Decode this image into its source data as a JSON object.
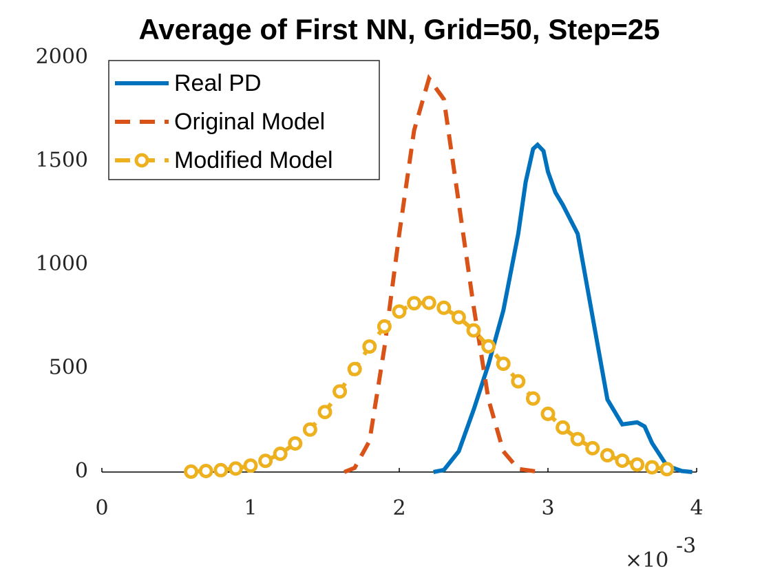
{
  "chart_data": {
    "type": "line",
    "title": "Average of First NN, Grid=50, Step=25",
    "x_offset_label": "×10",
    "x_offset_exponent": "-3",
    "xlim": [
      0,
      4
    ],
    "xticks": [
      0,
      1,
      2,
      3,
      4
    ],
    "ylim": [
      0,
      2000
    ],
    "yticks": [
      0,
      500,
      1000,
      1500,
      2000
    ],
    "legend": "upper left",
    "series": [
      {
        "name": "Real PD",
        "color": "#0072bd",
        "style": "solid",
        "x": [
          2.23,
          2.3,
          2.4,
          2.5,
          2.6,
          2.7,
          2.8,
          2.85,
          2.9,
          2.93,
          2.97,
          3.0,
          3.05,
          3.1,
          3.2,
          3.3,
          3.4,
          3.5,
          3.6,
          3.65,
          3.7,
          3.8,
          3.9,
          3.97
        ],
        "values": [
          0,
          10,
          100,
          300,
          520,
          780,
          1150,
          1400,
          1560,
          1580,
          1550,
          1450,
          1350,
          1290,
          1150,
          750,
          350,
          230,
          240,
          220,
          140,
          30,
          5,
          0
        ]
      },
      {
        "name": "Original Model",
        "color": "#d95319",
        "style": "dashed",
        "x": [
          1.63,
          1.7,
          1.8,
          1.9,
          2.0,
          2.1,
          2.2,
          2.3,
          2.4,
          2.5,
          2.6,
          2.7,
          2.8,
          2.95
        ],
        "values": [
          0,
          20,
          150,
          600,
          1150,
          1650,
          1900,
          1800,
          1300,
          800,
          350,
          100,
          15,
          0
        ]
      },
      {
        "name": "Modified Model",
        "color": "#edb120",
        "style": "dashed",
        "marker": "o",
        "x": [
          0.6,
          0.7,
          0.8,
          0.9,
          1.0,
          1.1,
          1.2,
          1.3,
          1.4,
          1.5,
          1.6,
          1.7,
          1.8,
          1.9,
          2.0,
          2.1,
          2.2,
          2.3,
          2.4,
          2.5,
          2.6,
          2.7,
          2.8,
          2.9,
          3.0,
          3.1,
          3.2,
          3.3,
          3.4,
          3.5,
          3.6,
          3.7,
          3.8
        ],
        "values": [
          2,
          5,
          9,
          17,
          31,
          54,
          88,
          138,
          205,
          290,
          389,
          497,
          606,
          703,
          775,
          815,
          817,
          793,
          747,
          684,
          607,
          523,
          438,
          355,
          281,
          215,
          159,
          115,
          81,
          55,
          36,
          23,
          14
        ]
      }
    ]
  }
}
